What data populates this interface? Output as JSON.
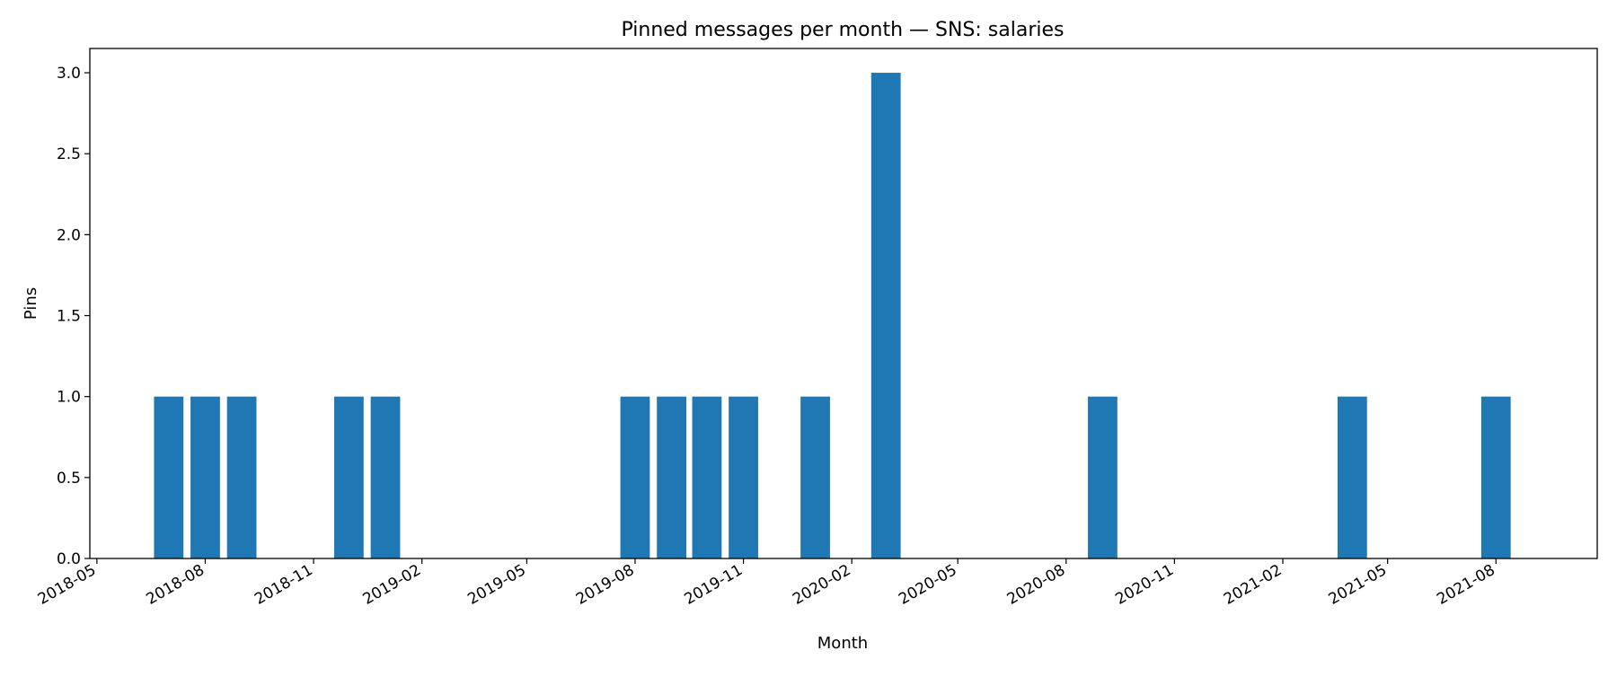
{
  "chart_data": {
    "type": "bar",
    "title": "Pinned messages per month — SNS: salaries",
    "xlabel": "Month",
    "ylabel": "Pins",
    "x_axis_type": "date",
    "x_tick_labels": [
      "2018-05",
      "2018-08",
      "2018-11",
      "2019-02",
      "2019-05",
      "2019-08",
      "2019-11",
      "2020-02",
      "2020-05",
      "2020-08",
      "2020-11",
      "2021-02",
      "2021-05",
      "2021-08"
    ],
    "y_ticks": [
      0.0,
      0.5,
      1.0,
      1.5,
      2.0,
      2.5,
      3.0
    ],
    "y_tick_labels": [
      "0.0",
      "0.5",
      "1.0",
      "1.5",
      "2.0",
      "2.5",
      "3.0"
    ],
    "ylim": [
      0,
      3.15
    ],
    "xlim": [
      "2018-04-25",
      "2021-10-26"
    ],
    "bar_color": "#1f77b4",
    "grid": false,
    "bars": [
      {
        "x": "2018-07-01",
        "value": 1
      },
      {
        "x": "2018-08-01",
        "value": 1
      },
      {
        "x": "2018-09-01",
        "value": 1
      },
      {
        "x": "2018-12-01",
        "value": 1
      },
      {
        "x": "2019-01-01",
        "value": 1
      },
      {
        "x": "2019-08-01",
        "value": 1
      },
      {
        "x": "2019-09-01",
        "value": 1
      },
      {
        "x": "2019-10-01",
        "value": 1
      },
      {
        "x": "2019-11-01",
        "value": 1
      },
      {
        "x": "2020-01-01",
        "value": 1
      },
      {
        "x": "2020-03-01",
        "value": 3
      },
      {
        "x": "2020-09-01",
        "value": 1
      },
      {
        "x": "2021-04-01",
        "value": 1
      },
      {
        "x": "2021-08-01",
        "value": 1
      }
    ]
  }
}
